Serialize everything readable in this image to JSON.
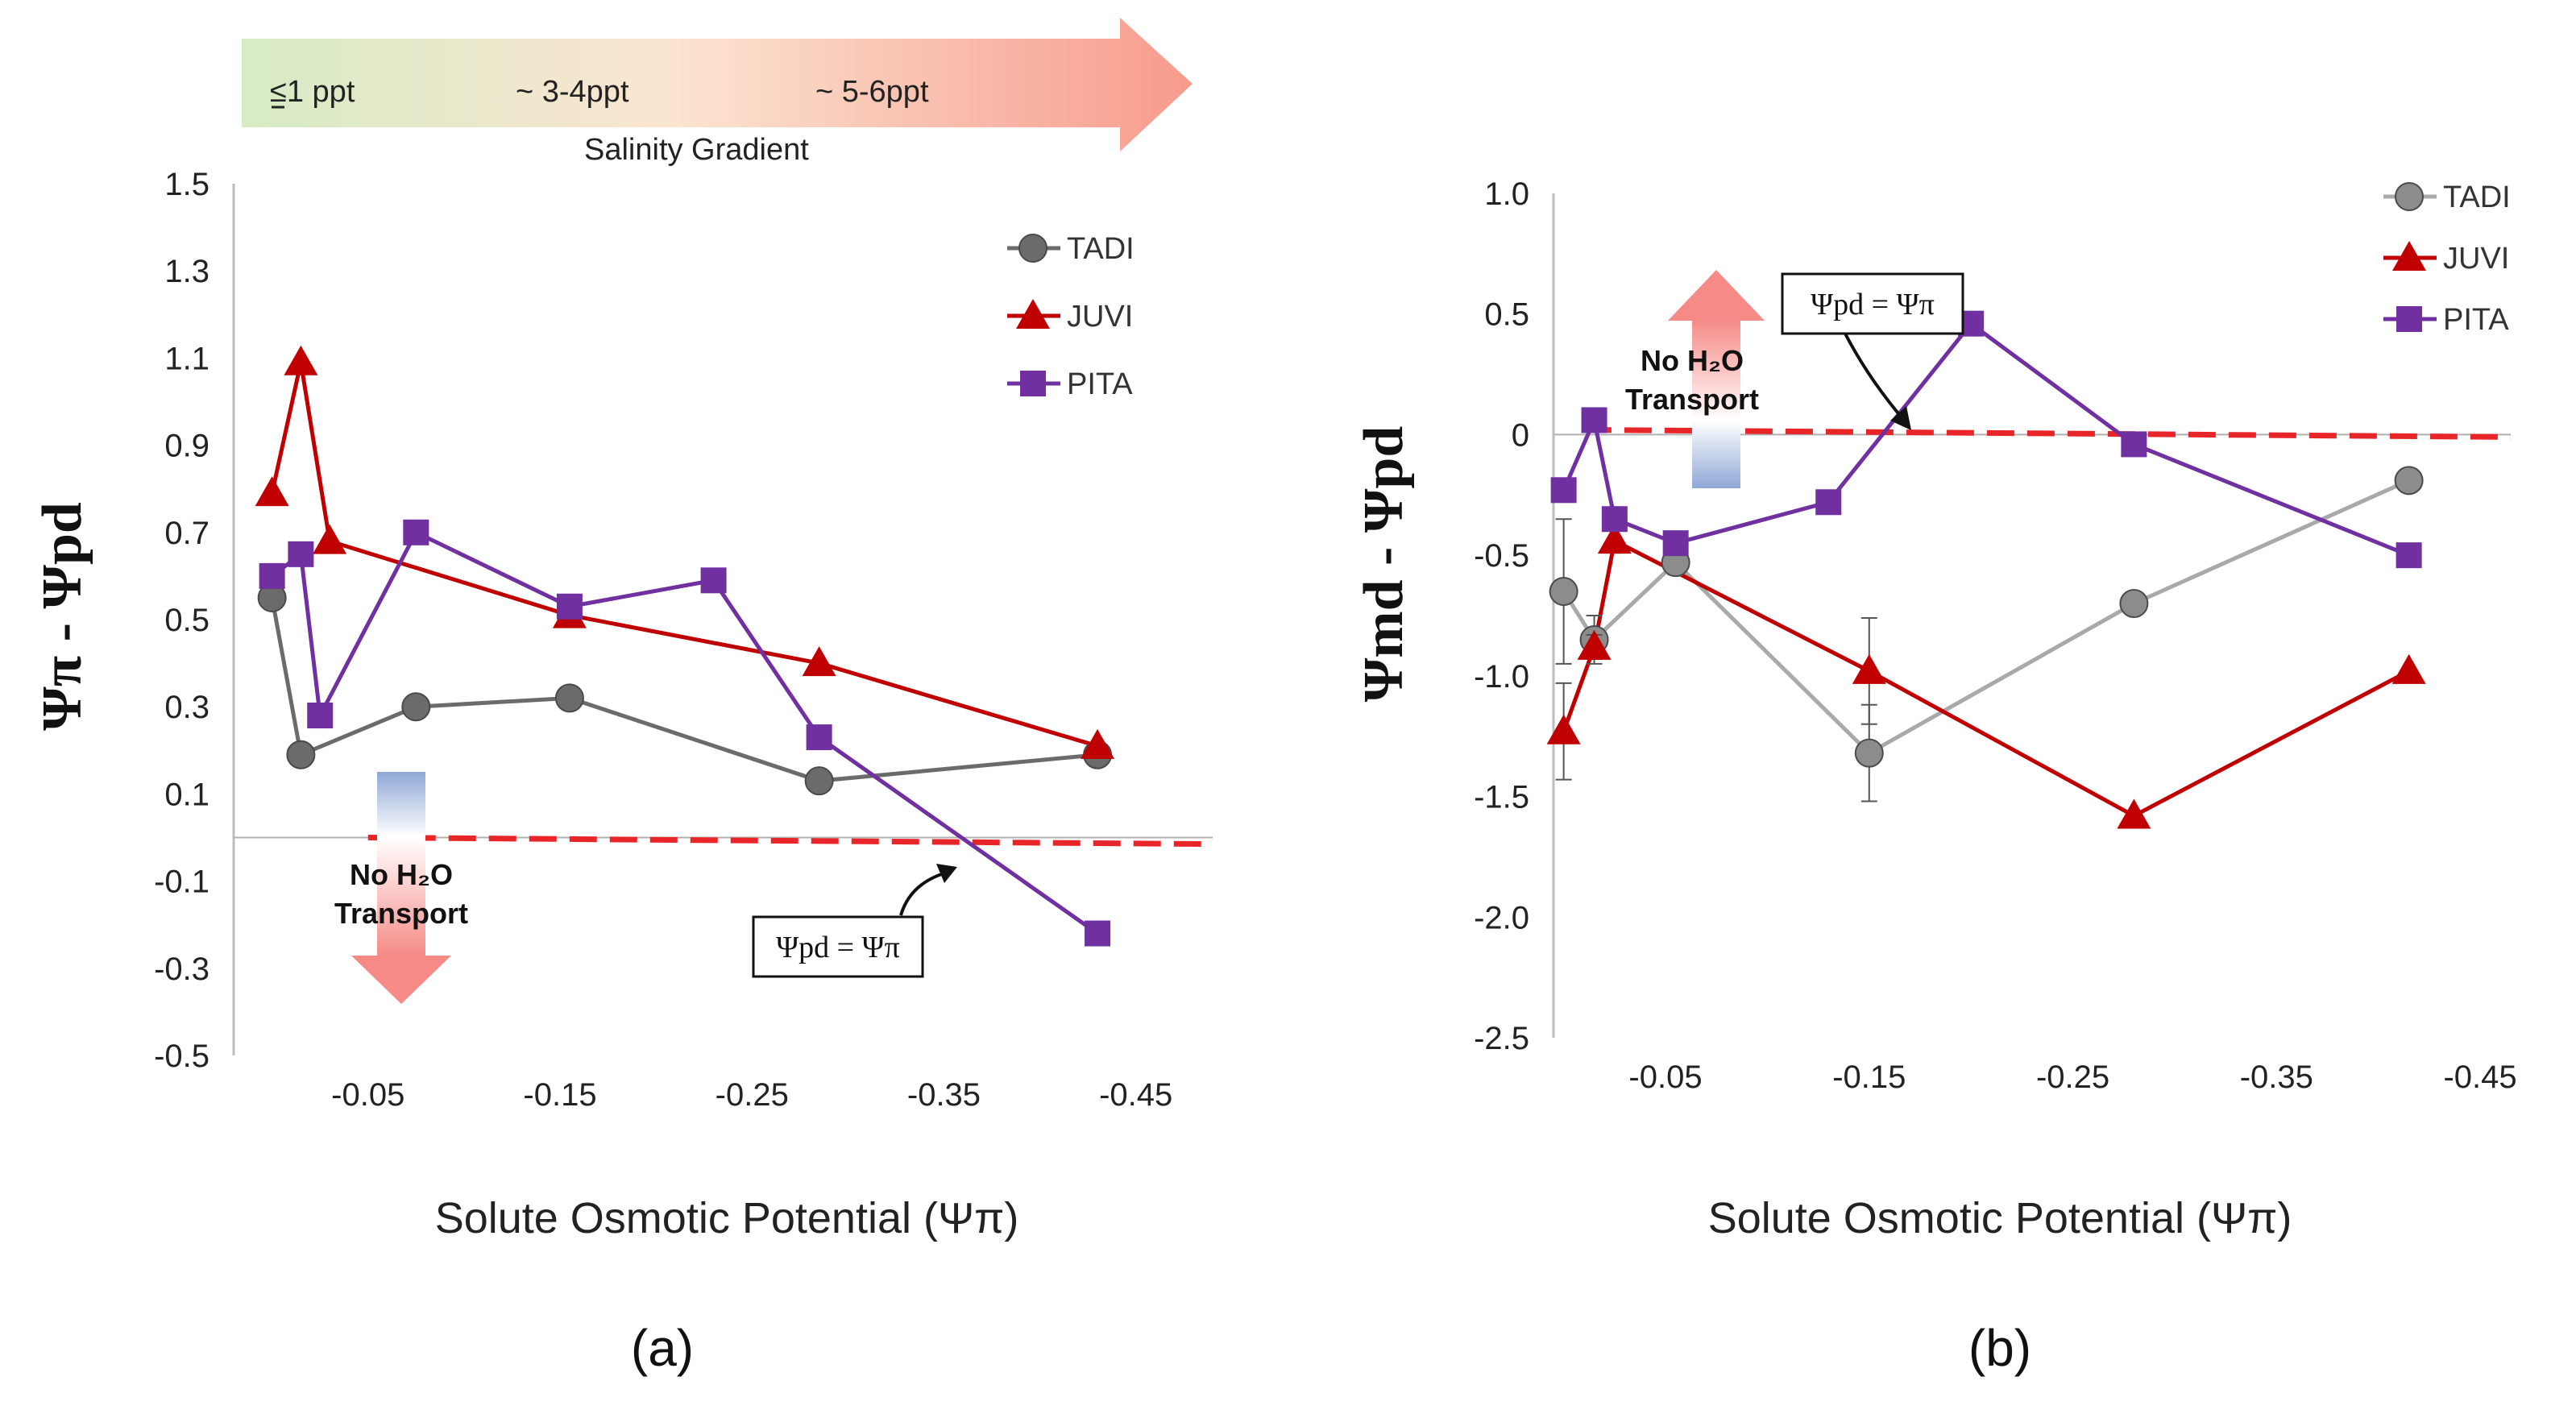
{
  "figure": {
    "salinity_banner": {
      "labels": [
        "≤1 ppt",
        "~ 3-4ppt",
        "~ 5-6ppt"
      ],
      "title": "Salinity Gradient"
    },
    "marker_shapes": {
      "TADI": "circle",
      "JUVI": "triangle",
      "PITA": "square"
    },
    "colors": {
      "TADI": "#6b6b6b",
      "JUVI": "#c00000",
      "PITA": "#7030a0",
      "reference_line": "#e8262a"
    }
  },
  "chart_data": [
    {
      "type": "line",
      "panel_label": "(a)",
      "title": "",
      "xlabel": "Solute Osmotic Potential (Ψπ)",
      "ylabel": "Ψπ - Ψpd",
      "xlim": [
        0.02,
        -0.49
      ],
      "ylim": [
        -0.5,
        1.5
      ],
      "x_ticks": [
        "-0.05",
        "-0.15",
        "-0.25",
        "-0.35",
        "-0.45"
      ],
      "x_tick_values": [
        -0.05,
        -0.15,
        -0.25,
        -0.35,
        -0.45
      ],
      "y_ticks": [
        "1.5",
        "1.3",
        "1.1",
        "0.9",
        "0.7",
        "0.5",
        "0.3",
        "0.1",
        "-0.1",
        "-0.3",
        "-0.5"
      ],
      "y_tick_values": [
        1.5,
        1.3,
        1.1,
        0.9,
        0.7,
        0.5,
        0.3,
        0.1,
        -0.1,
        -0.3,
        -0.5
      ],
      "series": [
        {
          "name": "TADI",
          "points": [
            [
              0.0,
              0.55
            ],
            [
              -0.015,
              0.19
            ],
            [
              -0.075,
              0.3
            ],
            [
              -0.155,
              0.32
            ],
            [
              -0.285,
              0.13
            ],
            [
              -0.43,
              0.19
            ]
          ]
        },
        {
          "name": "JUVI",
          "points": [
            [
              0.0,
              0.79
            ],
            [
              -0.015,
              1.09
            ],
            [
              -0.03,
              0.68
            ],
            [
              -0.155,
              0.51
            ],
            [
              -0.285,
              0.4
            ],
            [
              -0.43,
              0.21
            ]
          ]
        },
        {
          "name": "PITA",
          "points": [
            [
              0.0,
              0.6
            ],
            [
              -0.015,
              0.65
            ],
            [
              -0.025,
              0.28
            ],
            [
              -0.075,
              0.7
            ],
            [
              -0.155,
              0.53
            ],
            [
              -0.23,
              0.59
            ],
            [
              -0.285,
              0.23
            ],
            [
              -0.43,
              -0.22
            ]
          ]
        }
      ],
      "reference_line": {
        "label": "Ψpd = Ψπ",
        "y_start": 0.0,
        "y_end": -0.015,
        "x_start": -0.05,
        "x_end": -0.49
      },
      "annotation": {
        "line1": "No H₂O",
        "line2": "Transport",
        "arrow_direction": "down"
      },
      "legend": [
        "TADI",
        "JUVI",
        "PITA"
      ],
      "legend_position": "top-right"
    },
    {
      "type": "line",
      "panel_label": "(b)",
      "title": "",
      "xlabel": "Solute Osmotic Potential (Ψπ)",
      "ylabel": "Ψmd - Ψpd",
      "xlim": [
        0.005,
        -0.465
      ],
      "ylim": [
        -2.5,
        1.0
      ],
      "x_ticks": [
        "-0.05",
        "-0.15",
        "-0.25",
        "-0.35",
        "-0.45"
      ],
      "x_tick_values": [
        -0.05,
        -0.15,
        -0.25,
        -0.35,
        -0.45
      ],
      "y_ticks": [
        "1.0",
        "0.5",
        "0",
        "-0.5",
        "-1.0",
        "-1.5",
        "-2.0",
        "-2.5"
      ],
      "y_tick_values": [
        1.0,
        0.5,
        0.0,
        -0.5,
        -1.0,
        -1.5,
        -2.0,
        -2.5
      ],
      "series": [
        {
          "name": "TADI",
          "points": [
            [
              0.0,
              -0.65
            ],
            [
              -0.015,
              -0.85
            ],
            [
              -0.055,
              -0.53
            ],
            [
              -0.15,
              -1.32
            ],
            [
              -0.28,
              -0.7
            ],
            [
              -0.415,
              -0.19
            ]
          ],
          "error_y": [
            0.3,
            0.1,
            0.05,
            0.2,
            0.0,
            0.0
          ]
        },
        {
          "name": "JUVI",
          "points": [
            [
              0.0,
              -1.23
            ],
            [
              -0.015,
              -0.88
            ],
            [
              -0.025,
              -0.44
            ],
            [
              -0.15,
              -0.98
            ],
            [
              -0.28,
              -1.58
            ],
            [
              -0.415,
              -0.98
            ]
          ],
          "error_y": [
            0.2,
            0.05,
            0.05,
            0.22,
            0.0,
            0.0
          ]
        },
        {
          "name": "PITA",
          "points": [
            [
              0.0,
              -0.23
            ],
            [
              -0.015,
              0.06
            ],
            [
              -0.025,
              -0.35
            ],
            [
              -0.055,
              -0.45
            ],
            [
              -0.13,
              -0.28
            ],
            [
              -0.2,
              0.46
            ],
            [
              -0.28,
              -0.04
            ],
            [
              -0.415,
              -0.5
            ]
          ]
        }
      ],
      "reference_line": {
        "label": "Ψpd = Ψπ",
        "y_start": 0.02,
        "y_end": -0.01,
        "x_start": -0.01,
        "x_end": -0.465
      },
      "annotation": {
        "line1": "No H₂O",
        "line2": "Transport",
        "arrow_direction": "up"
      },
      "legend": [
        "TADI",
        "JUVI",
        "PITA"
      ],
      "legend_position": "top-right"
    }
  ]
}
